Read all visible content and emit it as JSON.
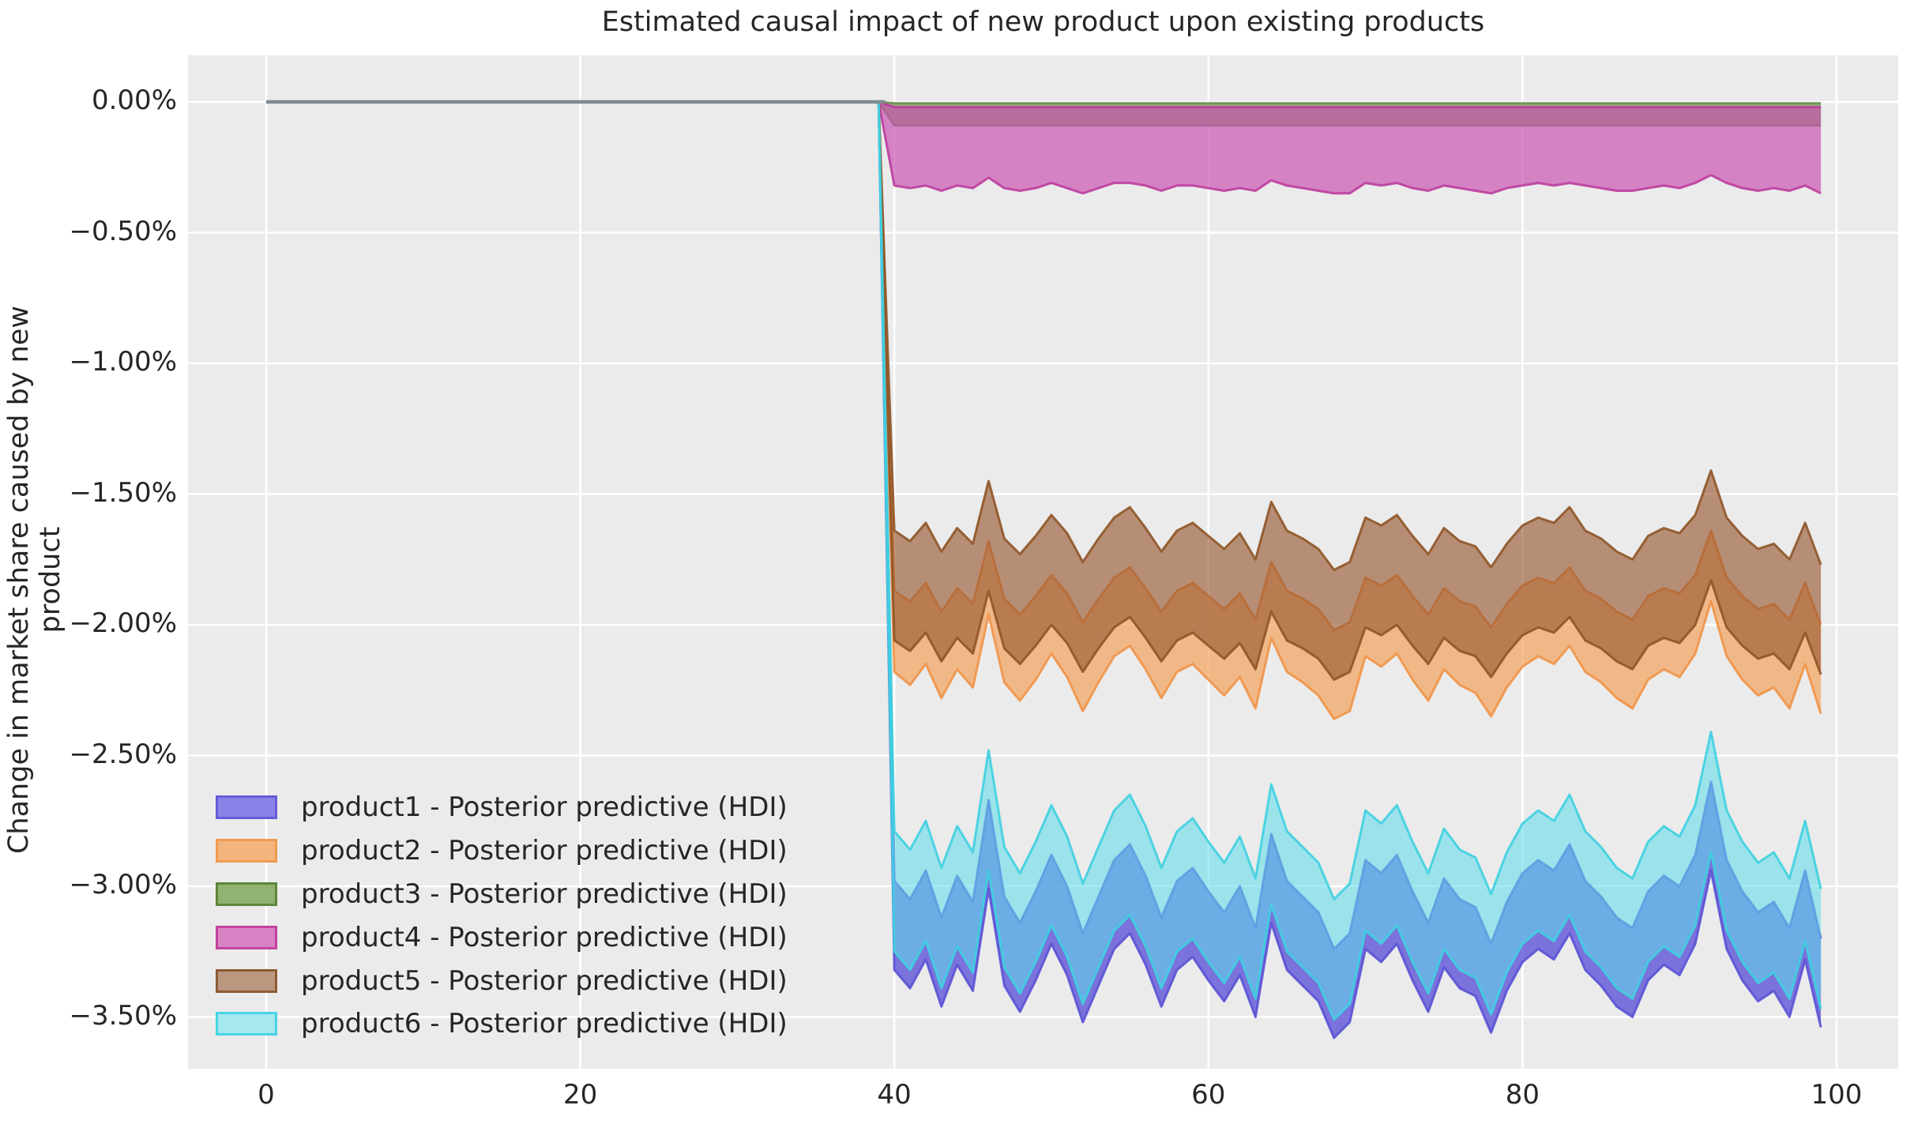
{
  "title": "Estimated causal impact of new product upon existing products",
  "ylabel": "Change in market share caused by new product",
  "background_colors": {
    "figure": "#ffffff",
    "axes": "#ebebeb",
    "grid": "#ffffff",
    "pre_period_line": "#7d8b92"
  },
  "axes": {
    "x_ticks": {
      "values": [
        0,
        20,
        40,
        60,
        80,
        100
      ],
      "labels": [
        "0",
        "20",
        "40",
        "60",
        "80",
        "100"
      ]
    },
    "y_ticks": {
      "values": [
        0,
        -0.5,
        -1.0,
        -1.5,
        -2.0,
        -2.5,
        -3.0,
        -3.5
      ],
      "labels": [
        "0.00%",
        "−0.50%",
        "−1.00%",
        "−1.50%",
        "−2.00%",
        "−2.50%",
        "−3.00%",
        "−3.50%"
      ]
    },
    "xlim": [
      -5,
      103.9
    ],
    "ylim": [
      -3.7,
      0.18
    ],
    "grid": true
  },
  "legend": {
    "position": "lower-left",
    "items": [
      {
        "label": "product1 - Posterior predictive (HDI)",
        "swatch_fill": "#8b82e9",
        "swatch_border": "#655cd9"
      },
      {
        "label": "product2 - Posterior predictive (HDI)",
        "swatch_fill": "#f4b47e",
        "swatch_border": "#ef9b50"
      },
      {
        "label": "product3 - Posterior predictive (HDI)",
        "swatch_fill": "#92b271",
        "swatch_border": "#5e8638"
      },
      {
        "label": "product4 - Posterior predictive (HDI)",
        "swatch_fill": "#d883c4",
        "swatch_border": "#c2439f"
      },
      {
        "label": "product5 - Posterior predictive (HDI)",
        "swatch_fill": "#bb9780",
        "swatch_border": "#8d5c33"
      },
      {
        "label": "product6 - Posterior predictive (HDI)",
        "swatch_fill": "#a5e8f0",
        "swatch_border": "#46d4e6"
      }
    ]
  },
  "chart_data": {
    "type": "area",
    "description": "HDI bands (upper/lower bounds, % change). Flat at 0 for x=0..39 (pre period); values below are for x=40..99 (post period).",
    "pre_period": {
      "x_start": 0,
      "x_end": 39,
      "value": 0
    },
    "post_x_start": 40,
    "title": "Estimated causal impact of new product upon existing products",
    "xlabel": "",
    "ylabel": "Change in market share caused by new product",
    "draw_order": [
      "product1",
      "product2",
      "product3",
      "product4",
      "product5",
      "product6"
    ],
    "series": [
      {
        "name": "product1",
        "fill": "#5B50D6",
        "fill_opacity": 0.78,
        "edge": "#5a52d5",
        "upper": [
          -2.98,
          -3.05,
          -2.94,
          -3.12,
          -2.96,
          -3.06,
          -2.67,
          -3.04,
          -3.14,
          -3.02,
          -2.88,
          -3.0,
          -3.18,
          -3.04,
          -2.9,
          -2.84,
          -2.96,
          -3.12,
          -2.98,
          -2.93,
          -3.02,
          -3.1,
          -3.0,
          -3.16,
          -2.8,
          -2.98,
          -3.04,
          -3.1,
          -3.24,
          -3.18,
          -2.9,
          -2.95,
          -2.88,
          -3.02,
          -3.14,
          -2.97,
          -3.05,
          -3.08,
          -3.22,
          -3.06,
          -2.95,
          -2.9,
          -2.94,
          -2.84,
          -2.98,
          -3.04,
          -3.12,
          -3.16,
          -3.02,
          -2.96,
          -3.0,
          -2.88,
          -2.6,
          -2.9,
          -3.02,
          -3.1,
          -3.06,
          -3.16,
          -2.94,
          -3.2
        ],
        "lower": [
          -3.32,
          -3.39,
          -3.28,
          -3.46,
          -3.3,
          -3.4,
          -3.01,
          -3.38,
          -3.48,
          -3.36,
          -3.22,
          -3.34,
          -3.52,
          -3.38,
          -3.24,
          -3.18,
          -3.3,
          -3.46,
          -3.32,
          -3.27,
          -3.36,
          -3.44,
          -3.34,
          -3.5,
          -3.14,
          -3.32,
          -3.38,
          -3.44,
          -3.58,
          -3.52,
          -3.24,
          -3.29,
          -3.22,
          -3.36,
          -3.48,
          -3.31,
          -3.39,
          -3.42,
          -3.56,
          -3.4,
          -3.29,
          -3.24,
          -3.28,
          -3.18,
          -3.32,
          -3.38,
          -3.46,
          -3.5,
          -3.36,
          -3.3,
          -3.34,
          -3.22,
          -2.94,
          -3.24,
          -3.36,
          -3.44,
          -3.4,
          -3.5,
          -3.28,
          -3.54
        ]
      },
      {
        "name": "product2",
        "fill": "#F49C52",
        "fill_opacity": 0.65,
        "edge": "#ef9448",
        "upper": [
          -1.87,
          -1.91,
          -1.84,
          -1.95,
          -1.86,
          -1.92,
          -1.68,
          -1.9,
          -1.96,
          -1.89,
          -1.81,
          -1.88,
          -1.99,
          -1.9,
          -1.82,
          -1.78,
          -1.86,
          -1.95,
          -1.87,
          -1.84,
          -1.89,
          -1.94,
          -1.88,
          -1.98,
          -1.76,
          -1.87,
          -1.9,
          -1.94,
          -2.02,
          -1.99,
          -1.82,
          -1.85,
          -1.81,
          -1.89,
          -1.96,
          -1.86,
          -1.91,
          -1.93,
          -2.01,
          -1.92,
          -1.85,
          -1.82,
          -1.84,
          -1.78,
          -1.87,
          -1.9,
          -1.95,
          -1.98,
          -1.89,
          -1.86,
          -1.88,
          -1.81,
          -1.64,
          -1.82,
          -1.89,
          -1.94,
          -1.92,
          -1.98,
          -1.84,
          -2.0
        ],
        "lower": [
          -2.18,
          -2.23,
          -2.15,
          -2.28,
          -2.17,
          -2.24,
          -1.96,
          -2.22,
          -2.29,
          -2.21,
          -2.11,
          -2.2,
          -2.33,
          -2.22,
          -2.12,
          -2.08,
          -2.17,
          -2.28,
          -2.18,
          -2.15,
          -2.21,
          -2.27,
          -2.2,
          -2.32,
          -2.05,
          -2.18,
          -2.22,
          -2.27,
          -2.36,
          -2.33,
          -2.12,
          -2.16,
          -2.11,
          -2.21,
          -2.29,
          -2.17,
          -2.23,
          -2.26,
          -2.35,
          -2.24,
          -2.16,
          -2.12,
          -2.15,
          -2.08,
          -2.18,
          -2.22,
          -2.28,
          -2.32,
          -2.21,
          -2.17,
          -2.2,
          -2.11,
          -1.91,
          -2.12,
          -2.21,
          -2.27,
          -2.24,
          -2.32,
          -2.15,
          -2.34
        ]
      },
      {
        "name": "product3",
        "fill": "#55822F",
        "fill_opacity": 0.6,
        "edge": "#6b8f52",
        "upper": -0.005,
        "lower": -0.09
      },
      {
        "name": "product4",
        "fill": "#C94FB0",
        "fill_opacity": 0.68,
        "edge": "#bc3d9e",
        "upper": -0.02,
        "lower": [
          -0.32,
          -0.33,
          -0.32,
          -0.34,
          -0.32,
          -0.33,
          -0.29,
          -0.33,
          -0.34,
          -0.33,
          -0.31,
          -0.33,
          -0.35,
          -0.33,
          -0.31,
          -0.31,
          -0.32,
          -0.34,
          -0.32,
          -0.32,
          -0.33,
          -0.34,
          -0.33,
          -0.34,
          -0.3,
          -0.32,
          -0.33,
          -0.34,
          -0.35,
          -0.35,
          -0.31,
          -0.32,
          -0.31,
          -0.33,
          -0.34,
          -0.32,
          -0.33,
          -0.34,
          -0.35,
          -0.33,
          -0.32,
          -0.31,
          -0.32,
          -0.31,
          -0.32,
          -0.33,
          -0.34,
          -0.34,
          -0.33,
          -0.32,
          -0.33,
          -0.31,
          -0.28,
          -0.31,
          -0.33,
          -0.34,
          -0.33,
          -0.34,
          -0.32,
          -0.35
        ]
      },
      {
        "name": "product5",
        "fill": "#96552F",
        "fill_opacity": 0.62,
        "edge": "#8f5527",
        "upper": [
          -1.64,
          -1.68,
          -1.61,
          -1.72,
          -1.63,
          -1.69,
          -1.45,
          -1.67,
          -1.73,
          -1.66,
          -1.58,
          -1.65,
          -1.76,
          -1.67,
          -1.59,
          -1.55,
          -1.63,
          -1.72,
          -1.64,
          -1.61,
          -1.66,
          -1.71,
          -1.65,
          -1.75,
          -1.53,
          -1.64,
          -1.67,
          -1.71,
          -1.79,
          -1.76,
          -1.59,
          -1.62,
          -1.58,
          -1.66,
          -1.73,
          -1.63,
          -1.68,
          -1.7,
          -1.78,
          -1.69,
          -1.62,
          -1.59,
          -1.61,
          -1.55,
          -1.64,
          -1.67,
          -1.72,
          -1.75,
          -1.66,
          -1.63,
          -1.65,
          -1.58,
          -1.41,
          -1.59,
          -1.66,
          -1.71,
          -1.69,
          -1.75,
          -1.61,
          -1.77
        ],
        "lower": [
          -2.06,
          -2.1,
          -2.03,
          -2.14,
          -2.05,
          -2.11,
          -1.87,
          -2.09,
          -2.15,
          -2.08,
          -2.0,
          -2.07,
          -2.18,
          -2.09,
          -2.01,
          -1.97,
          -2.05,
          -2.14,
          -2.06,
          -2.03,
          -2.08,
          -2.13,
          -2.07,
          -2.17,
          -1.95,
          -2.06,
          -2.09,
          -2.13,
          -2.21,
          -2.18,
          -2.01,
          -2.04,
          -2.0,
          -2.08,
          -2.15,
          -2.05,
          -2.1,
          -2.12,
          -2.2,
          -2.11,
          -2.04,
          -2.01,
          -2.03,
          -1.97,
          -2.06,
          -2.09,
          -2.14,
          -2.17,
          -2.08,
          -2.05,
          -2.07,
          -2.0,
          -1.83,
          -2.01,
          -2.08,
          -2.13,
          -2.11,
          -2.17,
          -2.03,
          -2.19
        ]
      },
      {
        "name": "product6",
        "fill": "#5FDCEC",
        "fill_opacity": 0.56,
        "edge": "#3fd0e0",
        "upper": [
          -2.79,
          -2.86,
          -2.75,
          -2.93,
          -2.77,
          -2.87,
          -2.48,
          -2.85,
          -2.95,
          -2.83,
          -2.69,
          -2.81,
          -2.99,
          -2.85,
          -2.71,
          -2.65,
          -2.77,
          -2.93,
          -2.79,
          -2.74,
          -2.83,
          -2.91,
          -2.81,
          -2.97,
          -2.61,
          -2.79,
          -2.85,
          -2.91,
          -3.05,
          -2.99,
          -2.71,
          -2.76,
          -2.69,
          -2.83,
          -2.95,
          -2.78,
          -2.86,
          -2.89,
          -3.03,
          -2.87,
          -2.76,
          -2.71,
          -2.75,
          -2.65,
          -2.79,
          -2.85,
          -2.93,
          -2.97,
          -2.83,
          -2.77,
          -2.81,
          -2.69,
          -2.41,
          -2.71,
          -2.83,
          -2.91,
          -2.87,
          -2.97,
          -2.75,
          -3.01
        ],
        "lower": [
          -3.25,
          -3.32,
          -3.21,
          -3.39,
          -3.23,
          -3.33,
          -2.94,
          -3.31,
          -3.41,
          -3.29,
          -3.15,
          -3.27,
          -3.45,
          -3.31,
          -3.17,
          -3.11,
          -3.23,
          -3.39,
          -3.25,
          -3.2,
          -3.29,
          -3.37,
          -3.27,
          -3.43,
          -3.07,
          -3.25,
          -3.31,
          -3.37,
          -3.51,
          -3.45,
          -3.17,
          -3.22,
          -3.15,
          -3.29,
          -3.41,
          -3.24,
          -3.32,
          -3.35,
          -3.49,
          -3.33,
          -3.22,
          -3.17,
          -3.21,
          -3.11,
          -3.25,
          -3.31,
          -3.39,
          -3.43,
          -3.29,
          -3.23,
          -3.27,
          -3.15,
          -2.87,
          -3.17,
          -3.29,
          -3.37,
          -3.33,
          -3.43,
          -3.21,
          -3.47
        ]
      }
    ]
  }
}
